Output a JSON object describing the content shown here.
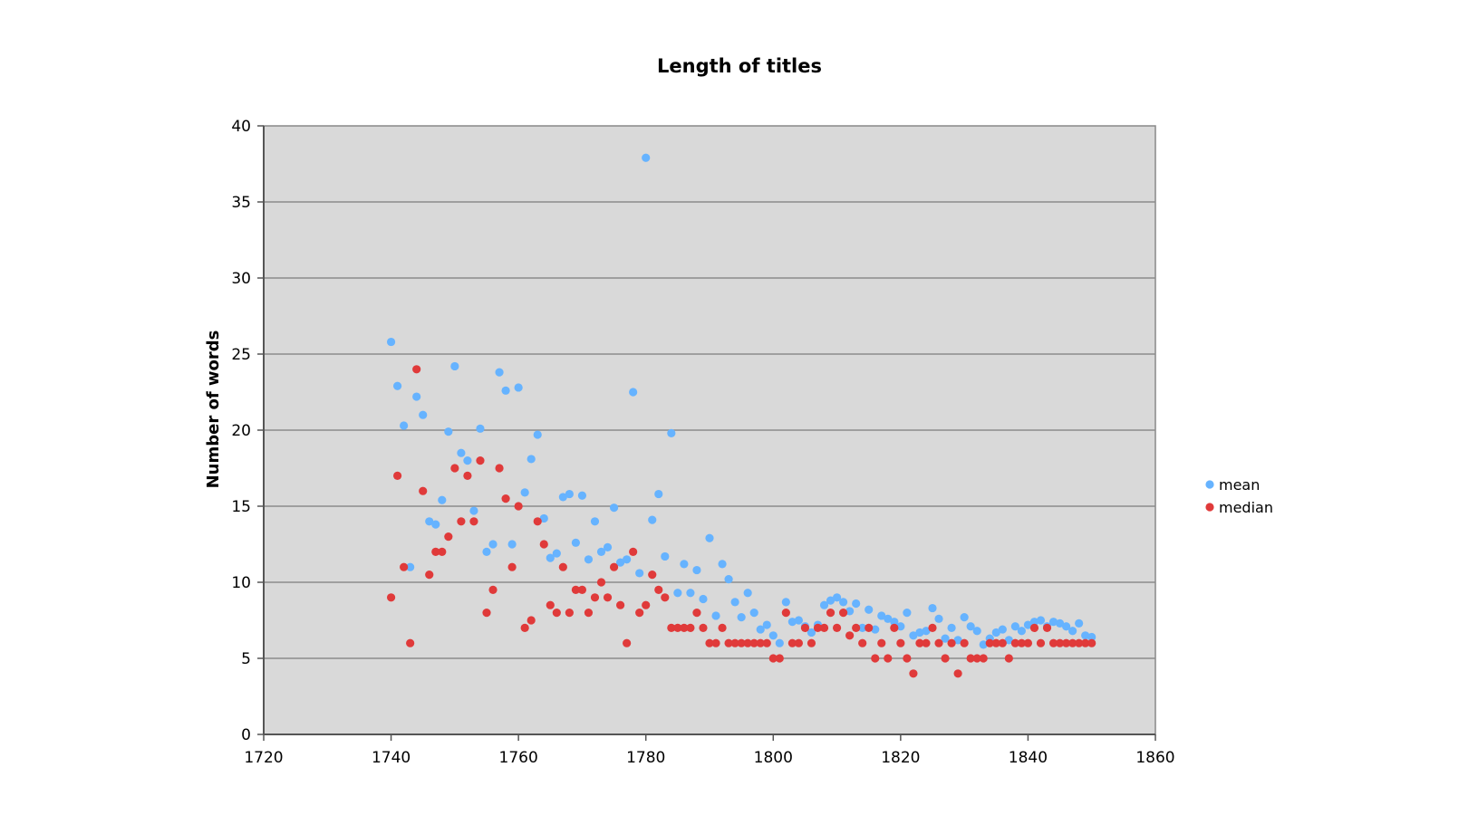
{
  "chart_data": {
    "type": "scatter",
    "title": "Length of titles",
    "xlabel": "",
    "ylabel": "Number of words",
    "xlim": [
      1720,
      1860
    ],
    "ylim": [
      0,
      40
    ],
    "xticks": [
      "1720",
      "1740",
      "1760",
      "1780",
      "1800",
      "1820",
      "1840",
      "1860"
    ],
    "yticks": [
      "0",
      "5",
      "10",
      "15",
      "20",
      "25",
      "30",
      "35",
      "40"
    ],
    "grid": "horizontal",
    "legend_position": "right",
    "background_color": "#d9d9d9",
    "series": [
      {
        "name": "mean",
        "color": "#66b3ff",
        "points": [
          [
            1740,
            25.8
          ],
          [
            1741,
            22.9
          ],
          [
            1742,
            20.3
          ],
          [
            1743,
            11.0
          ],
          [
            1744,
            22.2
          ],
          [
            1745,
            21.0
          ],
          [
            1746,
            14.0
          ],
          [
            1747,
            13.8
          ],
          [
            1748,
            15.4
          ],
          [
            1749,
            19.9
          ],
          [
            1750,
            24.2
          ],
          [
            1751,
            18.5
          ],
          [
            1752,
            18.0
          ],
          [
            1753,
            14.7
          ],
          [
            1754,
            20.1
          ],
          [
            1755,
            12.0
          ],
          [
            1756,
            12.5
          ],
          [
            1757,
            23.8
          ],
          [
            1758,
            22.6
          ],
          [
            1759,
            12.5
          ],
          [
            1760,
            22.8
          ],
          [
            1761,
            15.9
          ],
          [
            1762,
            18.1
          ],
          [
            1763,
            19.7
          ],
          [
            1764,
            14.2
          ],
          [
            1765,
            11.6
          ],
          [
            1766,
            11.9
          ],
          [
            1767,
            15.6
          ],
          [
            1768,
            15.8
          ],
          [
            1769,
            12.6
          ],
          [
            1770,
            15.7
          ],
          [
            1771,
            11.5
          ],
          [
            1772,
            14.0
          ],
          [
            1773,
            12.0
          ],
          [
            1774,
            12.3
          ],
          [
            1775,
            14.9
          ],
          [
            1776,
            11.3
          ],
          [
            1777,
            11.5
          ],
          [
            1778,
            22.5
          ],
          [
            1779,
            10.6
          ],
          [
            1780,
            37.9
          ],
          [
            1781,
            14.1
          ],
          [
            1782,
            15.8
          ],
          [
            1783,
            11.7
          ],
          [
            1784,
            19.8
          ],
          [
            1785,
            9.3
          ],
          [
            1786,
            11.2
          ],
          [
            1787,
            9.3
          ],
          [
            1788,
            10.8
          ],
          [
            1789,
            8.9
          ],
          [
            1790,
            12.9
          ],
          [
            1791,
            7.8
          ],
          [
            1792,
            11.2
          ],
          [
            1793,
            10.2
          ],
          [
            1794,
            8.7
          ],
          [
            1795,
            7.7
          ],
          [
            1796,
            9.3
          ],
          [
            1797,
            8.0
          ],
          [
            1798,
            6.9
          ],
          [
            1799,
            7.2
          ],
          [
            1800,
            6.5
          ],
          [
            1801,
            6.0
          ],
          [
            1802,
            8.7
          ],
          [
            1803,
            7.4
          ],
          [
            1804,
            7.5
          ],
          [
            1805,
            7.1
          ],
          [
            1806,
            6.7
          ],
          [
            1807,
            7.2
          ],
          [
            1808,
            8.5
          ],
          [
            1809,
            8.8
          ],
          [
            1810,
            9.0
          ],
          [
            1811,
            8.7
          ],
          [
            1812,
            8.1
          ],
          [
            1813,
            8.6
          ],
          [
            1814,
            7.0
          ],
          [
            1815,
            8.2
          ],
          [
            1816,
            6.9
          ],
          [
            1817,
            7.8
          ],
          [
            1818,
            7.6
          ],
          [
            1819,
            7.4
          ],
          [
            1820,
            7.1
          ],
          [
            1821,
            8.0
          ],
          [
            1822,
            6.5
          ],
          [
            1823,
            6.7
          ],
          [
            1824,
            6.8
          ],
          [
            1825,
            8.3
          ],
          [
            1826,
            7.6
          ],
          [
            1827,
            6.3
          ],
          [
            1828,
            7.0
          ],
          [
            1829,
            6.2
          ],
          [
            1830,
            7.7
          ],
          [
            1831,
            7.1
          ],
          [
            1832,
            6.8
          ],
          [
            1833,
            5.9
          ],
          [
            1834,
            6.3
          ],
          [
            1835,
            6.7
          ],
          [
            1836,
            6.9
          ],
          [
            1837,
            6.2
          ],
          [
            1838,
            7.1
          ],
          [
            1839,
            6.8
          ],
          [
            1840,
            7.2
          ],
          [
            1841,
            7.4
          ],
          [
            1842,
            7.5
          ],
          [
            1843,
            7.1
          ],
          [
            1844,
            7.4
          ],
          [
            1845,
            7.3
          ],
          [
            1846,
            7.1
          ],
          [
            1847,
            6.8
          ],
          [
            1848,
            7.3
          ],
          [
            1849,
            6.5
          ],
          [
            1850,
            6.4
          ]
        ]
      },
      {
        "name": "median",
        "color": "#e03a3a",
        "points": [
          [
            1740,
            9.0
          ],
          [
            1741,
            17.0
          ],
          [
            1742,
            11.0
          ],
          [
            1743,
            6.0
          ],
          [
            1744,
            24.0
          ],
          [
            1745,
            16.0
          ],
          [
            1746,
            10.5
          ],
          [
            1747,
            12.0
          ],
          [
            1748,
            12.0
          ],
          [
            1749,
            13.0
          ],
          [
            1750,
            17.5
          ],
          [
            1751,
            14.0
          ],
          [
            1752,
            17.0
          ],
          [
            1753,
            14.0
          ],
          [
            1754,
            18.0
          ],
          [
            1755,
            8.0
          ],
          [
            1756,
            9.5
          ],
          [
            1757,
            17.5
          ],
          [
            1758,
            15.5
          ],
          [
            1759,
            11.0
          ],
          [
            1760,
            15.0
          ],
          [
            1761,
            7.0
          ],
          [
            1762,
            7.5
          ],
          [
            1763,
            14.0
          ],
          [
            1764,
            12.5
          ],
          [
            1765,
            8.5
          ],
          [
            1766,
            8.0
          ],
          [
            1767,
            11.0
          ],
          [
            1768,
            8.0
          ],
          [
            1769,
            9.5
          ],
          [
            1770,
            9.5
          ],
          [
            1771,
            8.0
          ],
          [
            1772,
            9.0
          ],
          [
            1773,
            10.0
          ],
          [
            1774,
            9.0
          ],
          [
            1775,
            11.0
          ],
          [
            1776,
            8.5
          ],
          [
            1777,
            6.0
          ],
          [
            1778,
            12.0
          ],
          [
            1779,
            8.0
          ],
          [
            1780,
            8.5
          ],
          [
            1781,
            10.5
          ],
          [
            1782,
            9.5
          ],
          [
            1783,
            9.0
          ],
          [
            1784,
            7.0
          ],
          [
            1785,
            7.0
          ],
          [
            1786,
            7.0
          ],
          [
            1787,
            7.0
          ],
          [
            1788,
            8.0
          ],
          [
            1789,
            7.0
          ],
          [
            1790,
            6.0
          ],
          [
            1791,
            6.0
          ],
          [
            1792,
            7.0
          ],
          [
            1793,
            6.0
          ],
          [
            1794,
            6.0
          ],
          [
            1795,
            6.0
          ],
          [
            1796,
            6.0
          ],
          [
            1797,
            6.0
          ],
          [
            1798,
            6.0
          ],
          [
            1799,
            6.0
          ],
          [
            1800,
            5.0
          ],
          [
            1801,
            5.0
          ],
          [
            1802,
            8.0
          ],
          [
            1803,
            6.0
          ],
          [
            1804,
            6.0
          ],
          [
            1805,
            7.0
          ],
          [
            1806,
            6.0
          ],
          [
            1807,
            7.0
          ],
          [
            1808,
            7.0
          ],
          [
            1809,
            8.0
          ],
          [
            1810,
            7.0
          ],
          [
            1811,
            8.0
          ],
          [
            1812,
            6.5
          ],
          [
            1813,
            7.0
          ],
          [
            1814,
            6.0
          ],
          [
            1815,
            7.0
          ],
          [
            1816,
            5.0
          ],
          [
            1817,
            6.0
          ],
          [
            1818,
            5.0
          ],
          [
            1819,
            7.0
          ],
          [
            1820,
            6.0
          ],
          [
            1821,
            5.0
          ],
          [
            1822,
            4.0
          ],
          [
            1823,
            6.0
          ],
          [
            1824,
            6.0
          ],
          [
            1825,
            7.0
          ],
          [
            1826,
            6.0
          ],
          [
            1827,
            5.0
          ],
          [
            1828,
            6.0
          ],
          [
            1829,
            4.0
          ],
          [
            1830,
            6.0
          ],
          [
            1831,
            5.0
          ],
          [
            1832,
            5.0
          ],
          [
            1833,
            5.0
          ],
          [
            1834,
            6.0
          ],
          [
            1835,
            6.0
          ],
          [
            1836,
            6.0
          ],
          [
            1837,
            5.0
          ],
          [
            1838,
            6.0
          ],
          [
            1839,
            6.0
          ],
          [
            1840,
            6.0
          ],
          [
            1841,
            7.0
          ],
          [
            1842,
            6.0
          ],
          [
            1843,
            7.0
          ],
          [
            1844,
            6.0
          ],
          [
            1845,
            6.0
          ],
          [
            1846,
            6.0
          ],
          [
            1847,
            6.0
          ],
          [
            1848,
            6.0
          ],
          [
            1849,
            6.0
          ],
          [
            1850,
            6.0
          ]
        ]
      }
    ]
  }
}
